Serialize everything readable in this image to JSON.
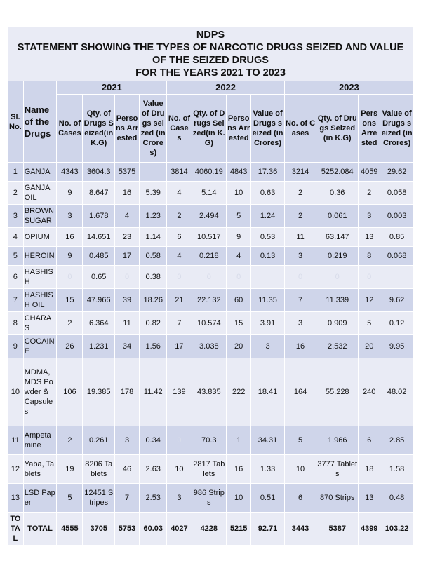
{
  "title": {
    "lines": [
      "NDPS",
      "STATEMENT SHOWING THE TYPES OF NARCOTIC DRUGS SEIZED AND VALUE OF THE SEIZED DRUGS",
      "FOR THE YEARS  2021 TO 2023"
    ]
  },
  "header": {
    "sl": "Sl. No.",
    "name": "Name of the Drugs",
    "years": [
      {
        "year": "2021",
        "columns": [
          "No. of Cases",
          "Qty. of Drugs Seized(in K.G)",
          "Persons Arrested",
          "Value of Drugs seized (in Crores)"
        ]
      },
      {
        "year": "2022",
        "columns": [
          "No. of Cases",
          "Qty. of Drugs Seized(in K.G)",
          "Persons Arrested",
          "Value of Drugs seized (in Crores)"
        ]
      },
      {
        "year": "2023",
        "columns": [
          "No. of Cases",
          "Qty. of Drugs Seized(in K.G)",
          "Persons Arrested",
          "Value of Drugs seized (in Crores)"
        ]
      }
    ]
  },
  "table": {
    "rows": [
      [
        "1",
        "GANJA",
        "4343",
        "3604.3",
        "5375",
        null,
        "3814",
        "4060.19",
        "4843",
        "17.36",
        "3214",
        "5252.084",
        "4059",
        "29.62"
      ],
      [
        "2",
        "GANJA OIL",
        "9",
        "8.647",
        "16",
        "5.39",
        "4",
        "5.14",
        "10",
        "0.63",
        "2",
        "0.36",
        "2",
        "0.058"
      ],
      [
        "3",
        "BROWN SUGAR",
        "3",
        "1.678",
        "4",
        "1.23",
        "2",
        "2.494",
        "5",
        "1.24",
        "2",
        "0.061",
        "3",
        "0.003"
      ],
      [
        "4",
        "OPIUM",
        "16",
        "14.651",
        "23",
        "1.14",
        "6",
        "10.517",
        "9",
        "0.53",
        "11",
        "63.147",
        "13",
        "0.85"
      ],
      [
        "5",
        "HEROIN",
        "9",
        "0.485",
        "17",
        "0.58",
        "4",
        "0.218",
        "4",
        "0.13",
        "3",
        "0.219",
        "8",
        "0.068"
      ],
      [
        "6",
        "HASHISH",
        {
          "text": "0",
          "faint": true
        },
        "0.65",
        {
          "text": "0",
          "faint": true
        },
        "0.38",
        {
          "text": "0",
          "faint": true
        },
        {
          "text": "0",
          "faint": true
        },
        {
          "text": "0",
          "faint": true
        },
        null,
        {
          "text": "0",
          "faint": true
        },
        {
          "text": "0",
          "faint": true
        },
        {
          "text": "0",
          "faint": true
        },
        null
      ],
      [
        "7",
        "HASHISH OIL",
        "15",
        "47.966",
        "39",
        "18.26",
        "21",
        "22.132",
        "60",
        "11.35",
        "7",
        "11.339",
        "12",
        "9.62"
      ],
      [
        "8",
        "CHARAS",
        "2",
        "6.364",
        "11",
        "0.82",
        "7",
        "10.574",
        "15",
        "3.91",
        "3",
        "0.909",
        "5",
        "0.12"
      ],
      [
        "9",
        "COCAINE",
        "26",
        "1.231",
        "34",
        "1.56",
        "17",
        "3.038",
        "20",
        "3",
        "16",
        "2.532",
        "20",
        "9.95"
      ],
      [
        "10",
        "MDMA, MDS Powder & Capsules",
        "106",
        "19.385",
        "178",
        "11.42",
        "139",
        "43.835",
        "222",
        "18.41",
        "164",
        "55.228",
        "240",
        "48.02"
      ],
      [
        "11",
        "Ampetamine",
        "2",
        "0.261",
        "3",
        "0.34",
        {
          "text": "0",
          "faint": true
        },
        "70.3",
        "1",
        "34.31",
        "5",
        "1.966",
        "6",
        "2.85"
      ],
      [
        "12",
        "Yaba, Tablets",
        "19",
        "8206 Tablets",
        "46",
        "2.63",
        "10",
        "2817 Tablets",
        "16",
        "1.33",
        "10",
        "3777 Tablets",
        "18",
        "1.58"
      ],
      [
        "13",
        "LSD Paper",
        "5",
        "12451 Stripes",
        "7",
        "2.53",
        "3",
        "986 Strips",
        "10",
        "0.51",
        "6",
        "870 Strips",
        "13",
        "0.48"
      ],
      [
        "TOTAL",
        "TOTAL",
        "4555",
        "3705",
        "5753",
        "60.03",
        "4027",
        "4228",
        "5215",
        "92.71",
        "3443",
        "5387",
        "4399",
        "103.22"
      ]
    ]
  }
}
